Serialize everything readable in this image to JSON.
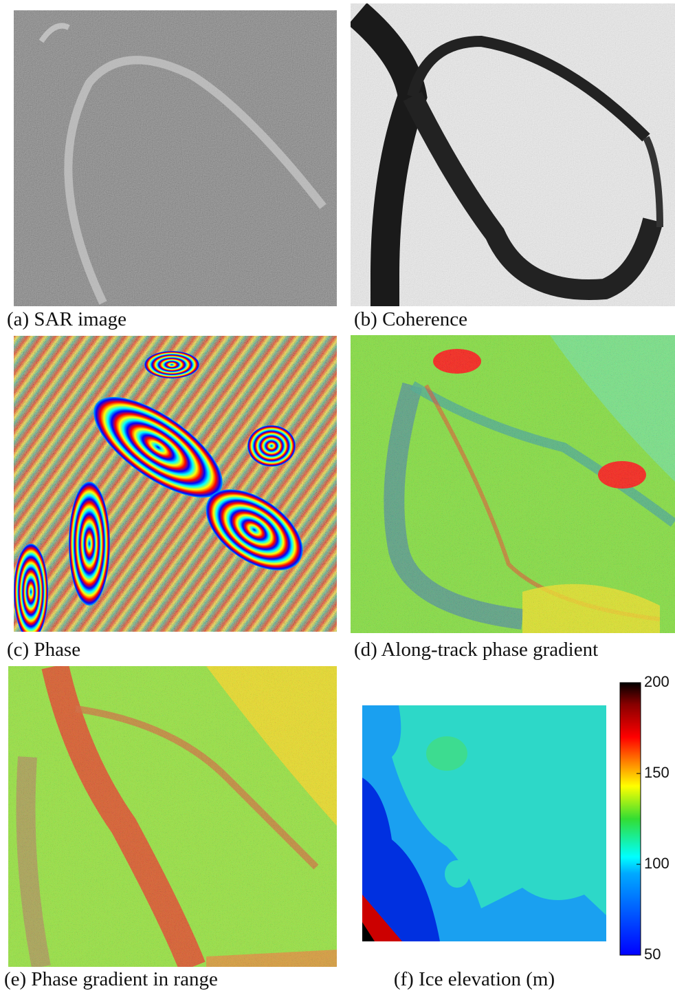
{
  "panels": [
    {
      "caption": "(a) SAR image"
    },
    {
      "caption": "(b) Coherence"
    },
    {
      "caption": "(c) Phase"
    },
    {
      "caption": "(d) Along-track phase gradient"
    },
    {
      "caption": "(e) Phase gradient in range"
    },
    {
      "caption": "(f) Ice elevation (m)"
    }
  ],
  "colorbar": {
    "lim": [
      50,
      200
    ],
    "ticks": [
      50,
      100,
      150,
      200
    ]
  }
}
